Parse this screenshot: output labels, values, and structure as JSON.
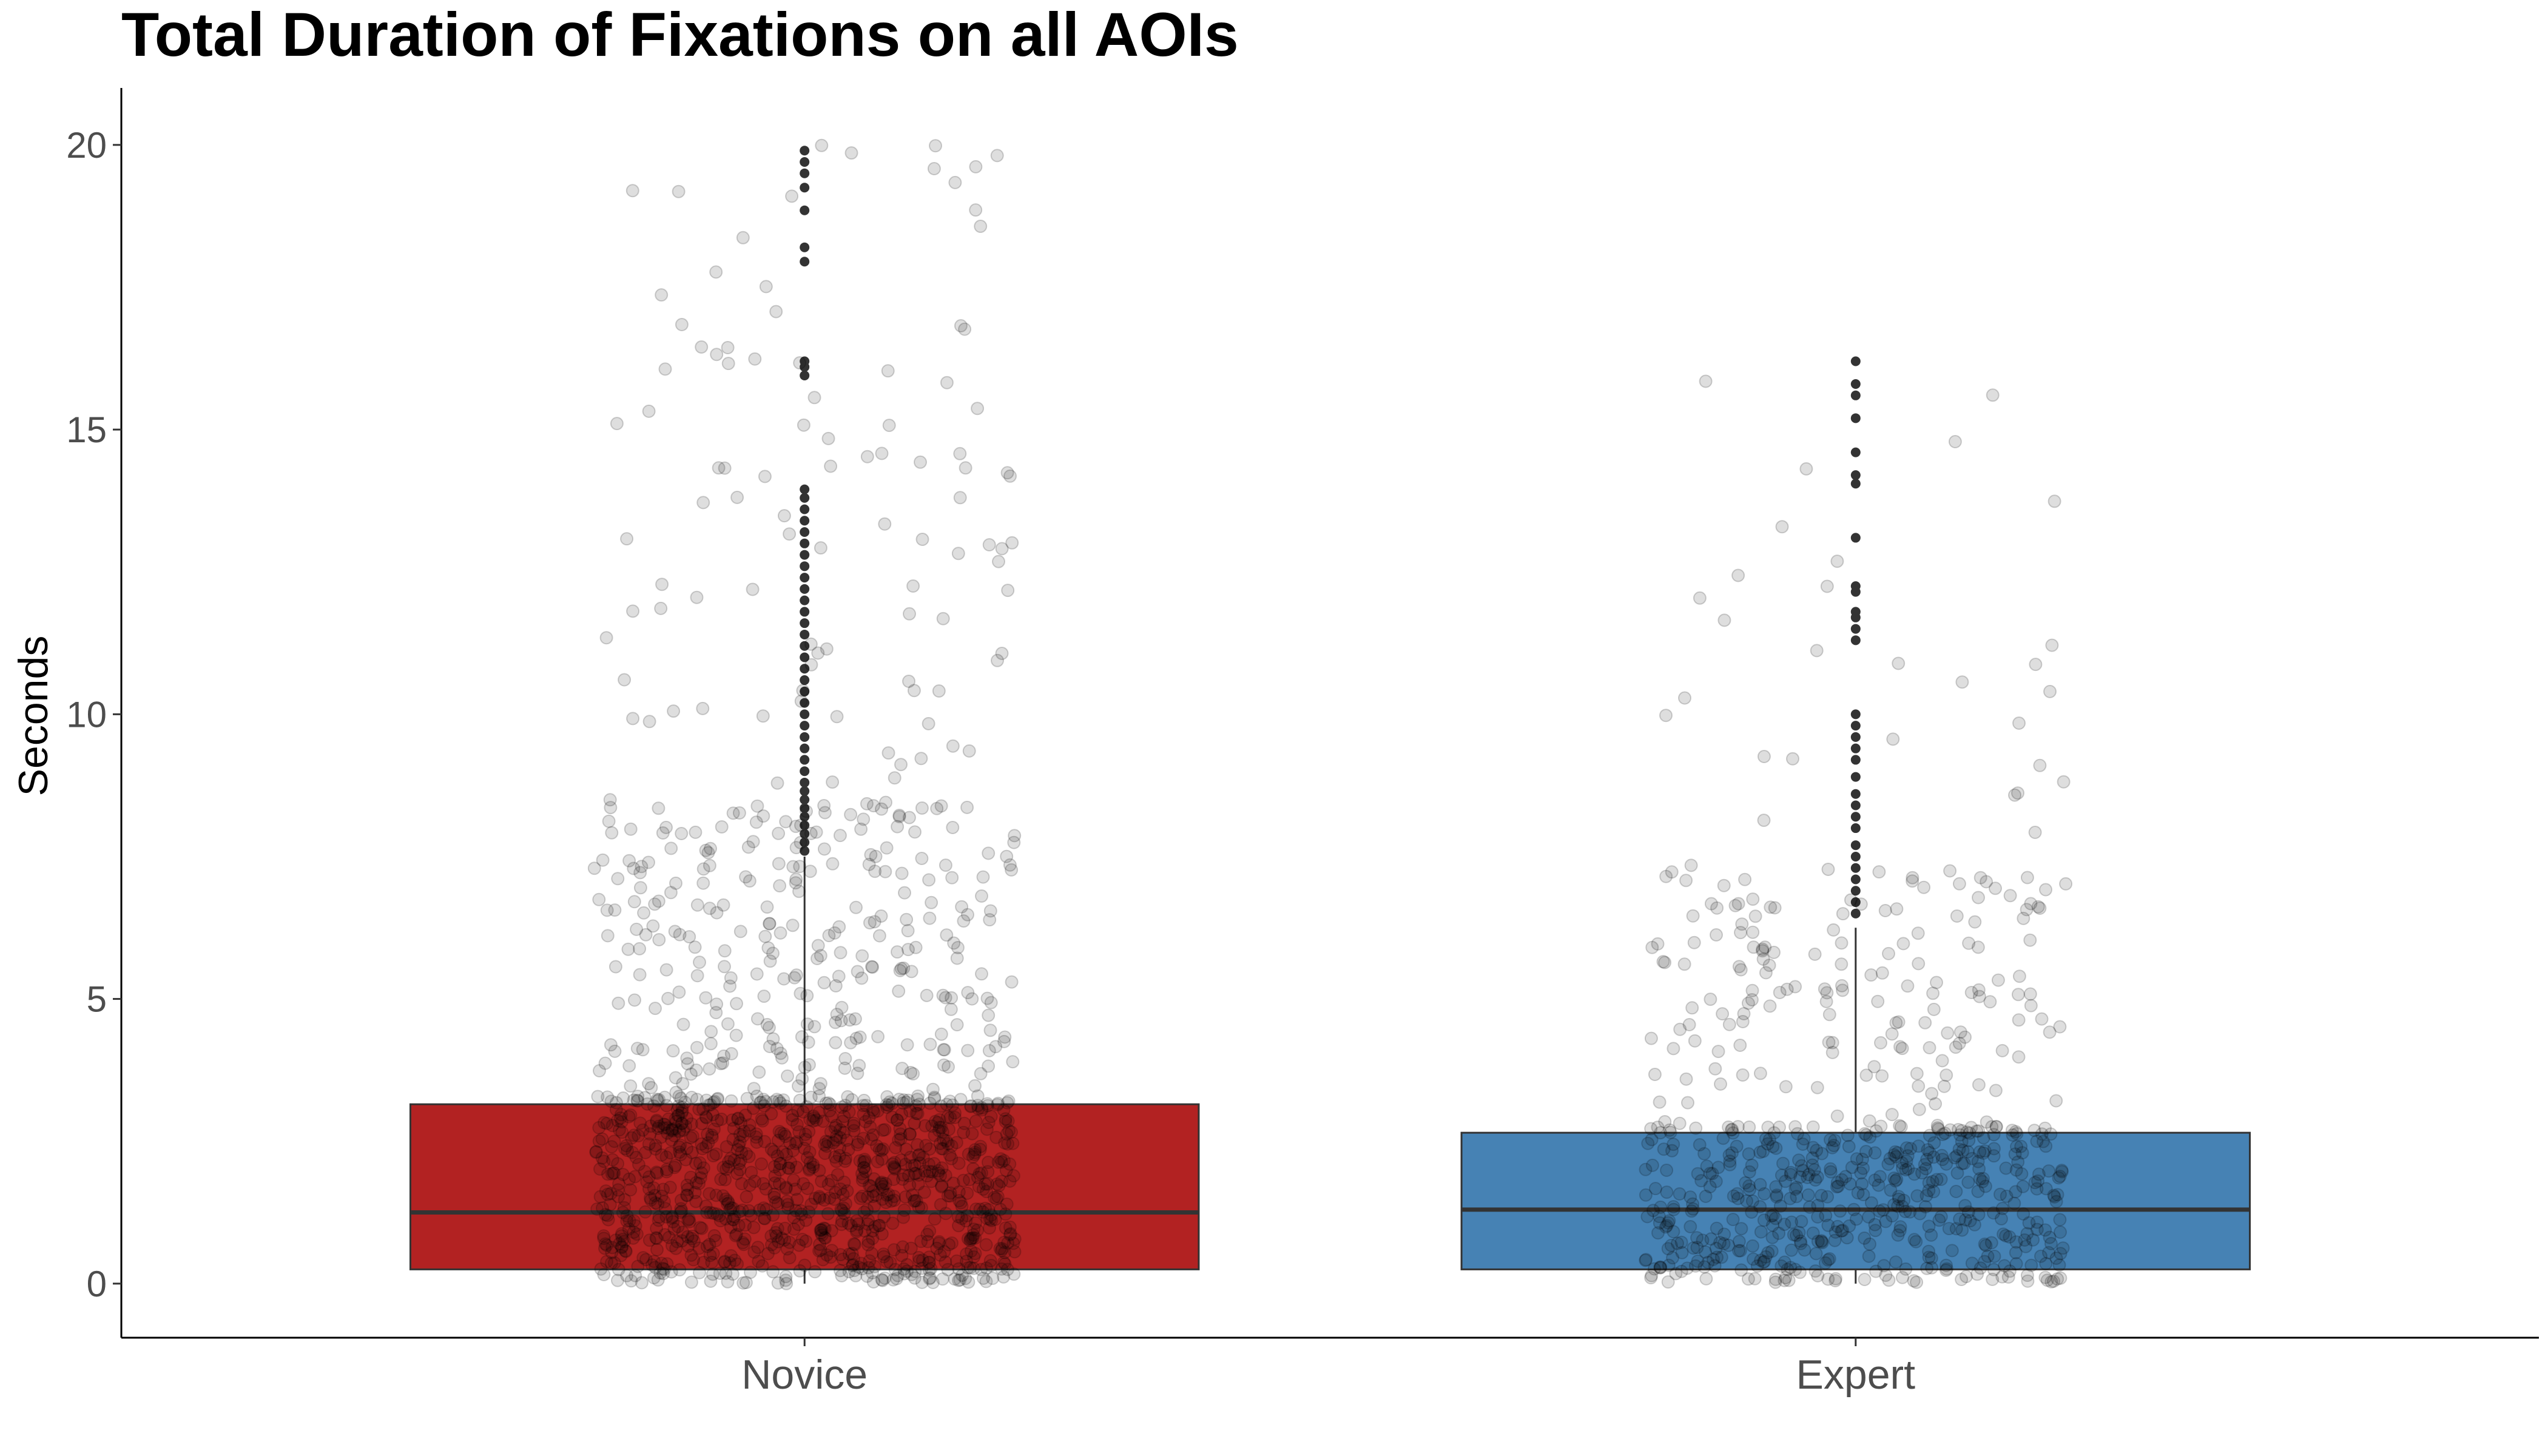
{
  "chart_data": {
    "type": "box",
    "title": "Total Duration of Fixations on all AOIs",
    "ylabel": "Seconds",
    "xlabel": "",
    "categories": [
      "Novice",
      "Expert"
    ],
    "ylim": [
      -0.95,
      21
    ],
    "yticks": [
      0,
      5,
      10,
      15,
      20
    ],
    "grid": false,
    "legend": "none",
    "colors": {
      "Novice": "#b22222",
      "Expert": "#4682b4"
    },
    "boxes": [
      {
        "category": "Novice",
        "q1": 0.25,
        "median": 1.25,
        "q3": 3.15,
        "whisker_low": 0,
        "whisker_high": 7.5,
        "outliers": [
          7.6,
          7.75,
          7.9,
          8.05,
          8.2,
          8.35,
          8.5,
          8.65,
          8.8,
          9.0,
          9.2,
          9.4,
          9.6,
          9.8,
          10.0,
          10.2,
          10.4,
          10.6,
          10.8,
          11.0,
          11.2,
          11.4,
          11.6,
          11.8,
          12.0,
          12.2,
          12.4,
          12.6,
          12.8,
          13.0,
          13.2,
          13.4,
          13.6,
          13.8,
          13.95,
          15.95,
          16.1,
          16.2,
          17.95,
          18.2,
          18.85,
          19.25,
          19.5,
          19.7,
          19.9
        ]
      },
      {
        "category": "Expert",
        "q1": 0.25,
        "median": 1.3,
        "q3": 2.65,
        "whisker_low": 0,
        "whisker_high": 6.25,
        "outliers": [
          6.5,
          6.7,
          6.9,
          7.1,
          7.3,
          7.5,
          7.7,
          8.0,
          8.2,
          8.4,
          8.6,
          8.9,
          9.2,
          9.4,
          9.6,
          9.8,
          10.0,
          11.3,
          11.5,
          11.7,
          11.8,
          12.15,
          12.25,
          13.1,
          14.05,
          14.2,
          14.6,
          15.2,
          15.6,
          15.8,
          16.2
        ]
      }
    ],
    "jitter_points": {
      "alpha": 0.15,
      "color": "#000000",
      "Novice": {
        "n": 1400,
        "max": 20
      },
      "Expert": {
        "n": 700,
        "max": 16.2
      }
    }
  }
}
